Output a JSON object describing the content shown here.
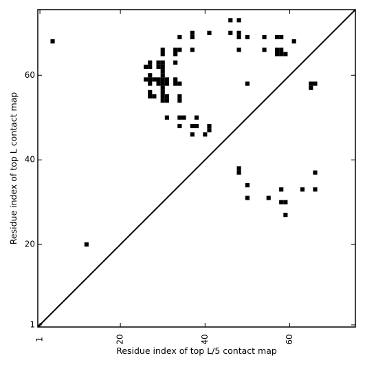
{
  "chart_data": {
    "type": "heatmap",
    "xlabel": "Residue index of top L/5 contact map",
    "ylabel": "Residue index of top L contact map",
    "xlim": [
      0.5,
      75.5
    ],
    "ylim": [
      0.5,
      75.5
    ],
    "x_ticks": [
      {
        "value": 1,
        "label": "1"
      },
      {
        "value": 20,
        "label": "20"
      },
      {
        "value": 40,
        "label": "40"
      },
      {
        "value": 60,
        "label": "60"
      }
    ],
    "y_ticks": [
      {
        "value": 1,
        "label": "1"
      },
      {
        "value": 20,
        "label": "20"
      },
      {
        "value": 40,
        "label": "40"
      },
      {
        "value": 60,
        "label": "60"
      }
    ],
    "diagonal": true,
    "cell_color": "#000000",
    "cells": [
      [
        4,
        68
      ],
      [
        12,
        20
      ],
      [
        26,
        62
      ],
      [
        27,
        62
      ],
      [
        27,
        63
      ],
      [
        26,
        59
      ],
      [
        27,
        59
      ],
      [
        27,
        60
      ],
      [
        27,
        58
      ],
      [
        28,
        59
      ],
      [
        27,
        56
      ],
      [
        27,
        55
      ],
      [
        28,
        55
      ],
      [
        29,
        62
      ],
      [
        29,
        63
      ],
      [
        30,
        62
      ],
      [
        30,
        63
      ],
      [
        30,
        61
      ],
      [
        30,
        60
      ],
      [
        29,
        59
      ],
      [
        29,
        58
      ],
      [
        30,
        59
      ],
      [
        30,
        58
      ],
      [
        31,
        59
      ],
      [
        31,
        58
      ],
      [
        30,
        57
      ],
      [
        30,
        56
      ],
      [
        30,
        55
      ],
      [
        30,
        54
      ],
      [
        31,
        55
      ],
      [
        31,
        54
      ],
      [
        30,
        65
      ],
      [
        30,
        66
      ],
      [
        33,
        63
      ],
      [
        33,
        59
      ],
      [
        33,
        58
      ],
      [
        34,
        58
      ],
      [
        33,
        65
      ],
      [
        33,
        66
      ],
      [
        34,
        66
      ],
      [
        34,
        69
      ],
      [
        34,
        55
      ],
      [
        34,
        54
      ],
      [
        31,
        50
      ],
      [
        34,
        50
      ],
      [
        35,
        50
      ],
      [
        34,
        48
      ],
      [
        37,
        48
      ],
      [
        38,
        48
      ],
      [
        38,
        50
      ],
      [
        37,
        46
      ],
      [
        37,
        66
      ],
      [
        37,
        69
      ],
      [
        37,
        70
      ],
      [
        40,
        46
      ],
      [
        41,
        47
      ],
      [
        41,
        48
      ],
      [
        41,
        70
      ],
      [
        46,
        70
      ],
      [
        46,
        73
      ],
      [
        48,
        73
      ],
      [
        48,
        70
      ],
      [
        48,
        69
      ],
      [
        48,
        66
      ],
      [
        50,
        69
      ],
      [
        50,
        58
      ],
      [
        54,
        69
      ],
      [
        54,
        66
      ],
      [
        57,
        69
      ],
      [
        58,
        69
      ],
      [
        57,
        66
      ],
      [
        57,
        65
      ],
      [
        58,
        66
      ],
      [
        58,
        65
      ],
      [
        59,
        65
      ],
      [
        61,
        68
      ],
      [
        65,
        58
      ],
      [
        66,
        58
      ],
      [
        65,
        57
      ],
      [
        48,
        38
      ],
      [
        48,
        37
      ],
      [
        50,
        34
      ],
      [
        50,
        31
      ],
      [
        55,
        31
      ],
      [
        58,
        33
      ],
      [
        58,
        30
      ],
      [
        59,
        30
      ],
      [
        59,
        27
      ],
      [
        63,
        33
      ],
      [
        66,
        33
      ],
      [
        66,
        37
      ]
    ]
  }
}
